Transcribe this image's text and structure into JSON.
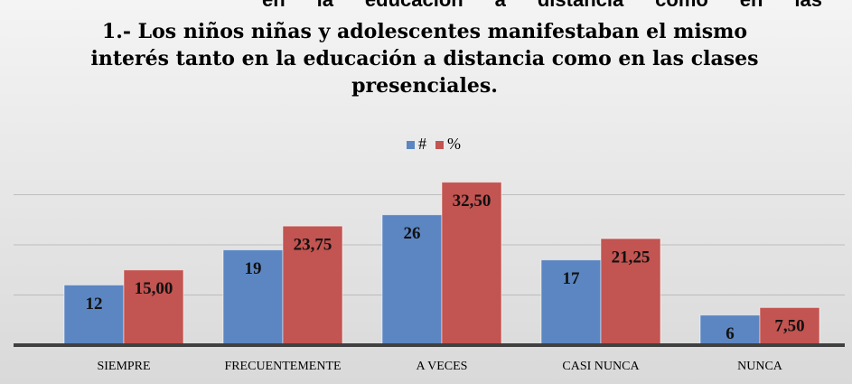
{
  "chart_data": {
    "type": "bar",
    "header_fragment": "en la educación a distancia como en las",
    "title": "1.- Los niños niñas y adolescentes manifestaban el mismo interés tanto en la educación a distancia como en las clases presenciales.",
    "categories": [
      "SIEMPRE",
      "FRECUENTEMENTE",
      "A VECES",
      "CASI NUNCA",
      "NUNCA"
    ],
    "series": [
      {
        "name": "#",
        "color": "#5b86c2",
        "values": [
          12,
          19,
          26,
          17,
          6
        ]
      },
      {
        "name": "%",
        "color": "#c25451",
        "values": [
          15.0,
          23.75,
          32.5,
          21.25,
          7.5
        ],
        "value_labels": [
          "15,00",
          "23,75",
          "32,50",
          "21,25",
          "7,50"
        ]
      }
    ],
    "ylim": [
      0,
      40
    ],
    "yticks": [
      0,
      10,
      20,
      30
    ],
    "grid": true,
    "legend": "top"
  }
}
